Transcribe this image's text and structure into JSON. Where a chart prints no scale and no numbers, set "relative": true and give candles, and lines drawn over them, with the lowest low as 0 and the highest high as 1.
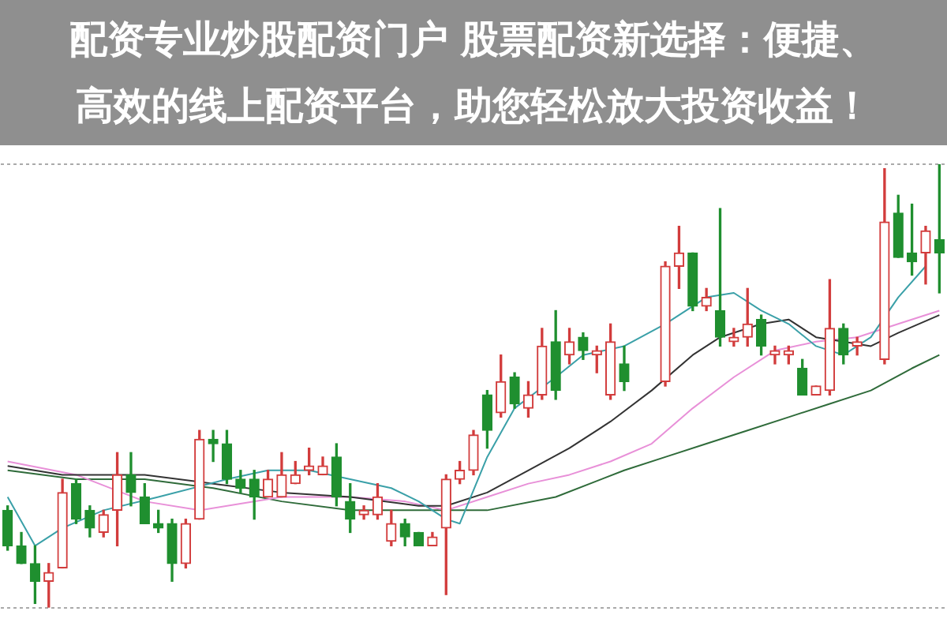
{
  "chart_data": {
    "type": "candlestick",
    "title": "配资专业炒股配资门户 股票配资新选择：便捷、高效的线上配资平台，助您轻松放大投资收益！",
    "relative": true,
    "grid": "y",
    "colors": [
      "#1f8f2f",
      "#1f8f2f",
      "#1f8f2f",
      "#d23c3c",
      "#d23c3c",
      "#1f8f2f",
      "#1f8f2f",
      "#d23c3c",
      "#d23c3c",
      "#1f8f2f",
      "#1f8f2f",
      "#1f8f2f",
      "#1f8f2f",
      "#d23c3c",
      "#d23c3c",
      "#1f8f2f",
      "#1f8f2f",
      "#1f8f2f",
      "#1f8f2f",
      "#d23c3c",
      "#d23c3c",
      "#d23c3c",
      "#d23c3c",
      "#d23c3c",
      "#1f8f2f",
      "#1f8f2f",
      "#d23c3c",
      "#d23c3c",
      "#d23c3c",
      "#1f8f2f",
      "#1f8f2f",
      "#d23c3c",
      "#d23c3c",
      "#d23c3c",
      "#d23c3c",
      "#1f8f2f",
      "#d23c3c",
      "#1f8f2f",
      "#d23c3c",
      "#d23c3c",
      "#1f8f2f",
      "#d23c3c",
      "#1f8f2f",
      "#d23c3c",
      "#d23c3c",
      "#1f8f2f",
      null,
      null,
      "#d23c3c",
      "#d23c3c",
      "#1f8f2f",
      "#d23c3c",
      "#1f8f2f",
      "#d23c3c",
      "#d23c3c",
      "#1f8f2f",
      "#d23c3c",
      "#d23c3c",
      "#1f8f2f",
      "#d23c3c",
      "#d23c3c",
      "#1f8f2f",
      "#d23c3c",
      null,
      "#d23c3c",
      "#1f8f2f",
      "#1f8f2f",
      "#d23c3c",
      "#1f8f2f"
    ],
    "categories": [
      null,
      null,
      null,
      null,
      null,
      null,
      null,
      null,
      null,
      null,
      null,
      null,
      null,
      null,
      null,
      null,
      null,
      null,
      null,
      null,
      null,
      null,
      null,
      null,
      null,
      null,
      null,
      null,
      null,
      null,
      null,
      null,
      null,
      null,
      null,
      null,
      null,
      null,
      null,
      null,
      null,
      null,
      null,
      null,
      null,
      null,
      null,
      null,
      null,
      null,
      null,
      null,
      null,
      null,
      null,
      null,
      null,
      null,
      null,
      null,
      null,
      null,
      null,
      null,
      null,
      null,
      null,
      null,
      null
    ],
    "ohlc": [
      [
        0.22,
        0.23,
        0.13,
        0.14
      ],
      [
        0.14,
        0.17,
        0.1,
        0.1
      ],
      [
        0.1,
        0.14,
        0.01,
        0.06
      ],
      [
        0.06,
        0.1,
        0,
        0.08
      ],
      [
        0.09,
        0.29,
        0.09,
        0.26
      ],
      [
        0.28,
        0.29,
        0.19,
        0.2
      ],
      [
        0.22,
        0.23,
        0.16,
        0.18
      ],
      [
        0.17,
        0.22,
        0.16,
        0.21
      ],
      [
        0.22,
        0.35,
        0.14,
        0.3
      ],
      [
        0.3,
        0.35,
        0.23,
        0.26
      ],
      [
        0.25,
        0.28,
        0.19,
        0.19
      ],
      [
        0.19,
        0.22,
        0.17,
        0.18
      ],
      [
        0.19,
        0.2,
        0.06,
        0.1
      ],
      [
        0.1,
        0.2,
        0.09,
        0.19
      ],
      [
        0.2,
        0.4,
        0.2,
        0.38
      ],
      [
        0.38,
        0.4,
        0.33,
        0.37
      ],
      [
        0.37,
        0.4,
        0.28,
        0.29
      ],
      [
        0.29,
        0.31,
        0.26,
        0.27
      ],
      [
        0.29,
        0.31,
        0.2,
        0.25
      ],
      [
        0.25,
        0.31,
        0.25,
        0.29
      ],
      [
        0.25,
        0.35,
        0.25,
        0.3
      ],
      [
        0.28,
        0.33,
        0.28,
        0.3
      ],
      [
        0.31,
        0.36,
        0.3,
        0.32
      ],
      [
        0.3,
        0.34,
        0.3,
        0.32
      ],
      [
        0.34,
        0.37,
        0.23,
        0.25
      ],
      [
        0.24,
        0.28,
        0.17,
        0.2
      ],
      [
        0.21,
        0.23,
        0.2,
        0.22
      ],
      [
        0.21,
        0.28,
        0.2,
        0.25
      ],
      [
        0.15,
        0.22,
        0.14,
        0.19
      ],
      [
        0.19,
        0.2,
        0.14,
        0.16
      ],
      [
        0.17,
        0.17,
        0.14,
        0.14
      ],
      [
        0.14,
        0.17,
        0.14,
        0.16
      ],
      [
        0.18,
        0.3,
        0.03,
        0.29
      ],
      [
        0.29,
        0.33,
        0.28,
        0.31
      ],
      [
        0.31,
        0.4,
        0.3,
        0.39
      ],
      [
        0.48,
        0.49,
        0.36,
        0.4
      ],
      [
        0.44,
        0.57,
        0.43,
        0.51
      ],
      [
        0.52,
        0.53,
        0.45,
        0.46
      ],
      [
        0.45,
        0.51,
        0.43,
        0.48
      ],
      [
        0.48,
        0.63,
        0.47,
        0.59
      ],
      [
        0.6,
        0.67,
        0.47,
        0.49
      ],
      [
        0.57,
        0.63,
        0.55,
        0.6
      ],
      [
        0.61,
        0.62,
        0.56,
        0.58
      ],
      [
        0.57,
        0.59,
        0.53,
        0.58
      ],
      [
        0.48,
        0.64,
        0.47,
        0.6
      ],
      [
        0.55,
        0.59,
        0.49,
        0.51
      ],
      null,
      null,
      [
        0.51,
        0.78,
        0.5,
        0.77
      ],
      [
        0.77,
        0.86,
        0.72,
        0.8
      ],
      [
        0.8,
        0.8,
        0.67,
        0.68
      ],
      [
        0.68,
        0.72,
        0.67,
        0.7
      ],
      [
        0.67,
        0.9,
        0.59,
        0.61
      ],
      [
        0.6,
        0.63,
        0.59,
        0.61
      ],
      [
        0.61,
        0.72,
        0.59,
        0.64
      ],
      [
        0.65,
        0.66,
        0.57,
        0.59
      ],
      [
        0.57,
        0.59,
        0.55,
        0.58
      ],
      [
        0.57,
        0.59,
        0.55,
        0.58
      ],
      [
        0.54,
        0.56,
        0.48,
        0.48
      ],
      [
        0.48,
        0.5,
        0.48,
        0.5
      ],
      [
        0.49,
        0.74,
        0.48,
        0.63
      ],
      [
        0.63,
        0.64,
        0.55,
        0.57
      ],
      [
        0.59,
        0.61,
        0.57,
        0.6
      ],
      null,
      [
        0.56,
        0.99,
        0.55,
        0.87
      ],
      [
        0.89,
        0.93,
        0.79,
        0.79
      ],
      [
        0.8,
        0.91,
        0.75,
        0.78
      ],
      [
        0.8,
        0.86,
        0.73,
        0.85
      ],
      [
        0.83,
        1.0,
        0.71,
        0.8
      ]
    ],
    "series": [
      {
        "type": "line",
        "color": "#3aa0a8",
        "values": [
          0.25,
          null,
          0.14,
          null,
          0.18,
          null,
          null,
          0.22,
          null,
          null,
          null,
          0.25,
          null,
          null,
          null,
          null,
          0.29,
          null,
          null,
          0.31,
          null,
          null,
          0.31,
          null,
          null,
          0.29,
          null,
          null,
          0.27,
          null,
          0.24,
          null,
          0.2,
          0.19,
          null,
          0.34,
          null,
          0.45,
          null,
          null,
          0.52,
          null,
          0.57,
          null,
          null,
          0.59,
          null,
          null,
          0.64,
          null,
          null,
          0.7,
          null,
          0.71,
          null,
          0.67,
          null,
          0.64,
          null,
          0.59,
          null,
          0.57,
          null,
          0.61,
          null,
          0.7,
          null,
          0.77,
          null
        ]
      },
      {
        "type": "line",
        "color": "#333333",
        "values": [
          0.32,
          null,
          null,
          null,
          0.3,
          null,
          null,
          null,
          null,
          null,
          0.3,
          null,
          null,
          null,
          null,
          0.28,
          null,
          null,
          null,
          null,
          0.26,
          null,
          null,
          null,
          null,
          0.25,
          null,
          null,
          null,
          null,
          0.23,
          null,
          0.23,
          null,
          null,
          0.26,
          null,
          null,
          0.31,
          null,
          null,
          0.36,
          null,
          null,
          0.42,
          null,
          null,
          0.49,
          null,
          null,
          0.57,
          null,
          0.61,
          null,
          null,
          0.64,
          null,
          0.65,
          null,
          0.61,
          null,
          0.6,
          null,
          0.59,
          null,
          0.62,
          null,
          null,
          0.66
        ]
      },
      {
        "type": "line",
        "color": "#e890d8",
        "values": [
          0.33,
          null,
          null,
          null,
          null,
          0.3,
          null,
          null,
          null,
          null,
          0.24,
          null,
          null,
          null,
          0.22,
          null,
          null,
          null,
          null,
          null,
          0.25,
          null,
          null,
          null,
          null,
          0.25,
          null,
          null,
          null,
          0.24,
          null,
          null,
          0.22,
          null,
          null,
          0.25,
          null,
          null,
          0.28,
          null,
          null,
          0.3,
          null,
          null,
          0.33,
          null,
          null,
          0.37,
          null,
          null,
          0.45,
          null,
          null,
          0.52,
          null,
          null,
          0.58,
          null,
          null,
          0.6,
          null,
          null,
          0.61,
          null,
          null,
          0.64,
          null,
          null,
          0.67
        ]
      },
      {
        "type": "line",
        "color": "#2f6b3a",
        "values": [
          0.31,
          null,
          null,
          null,
          null,
          0.29,
          null,
          null,
          null,
          null,
          0.29,
          null,
          null,
          null,
          null,
          0.27,
          null,
          null,
          null,
          null,
          0.24,
          null,
          null,
          null,
          null,
          0.22,
          null,
          null,
          null,
          null,
          0.22,
          null,
          null,
          null,
          null,
          0.22,
          null,
          null,
          null,
          null,
          0.25,
          null,
          null,
          null,
          null,
          0.31,
          null,
          null,
          0.34,
          null,
          null,
          0.37,
          null,
          null,
          0.4,
          null,
          null,
          0.43,
          null,
          null,
          0.46,
          null,
          null,
          0.49,
          null,
          null,
          0.54,
          null,
          0.57
        ]
      }
    ]
  }
}
